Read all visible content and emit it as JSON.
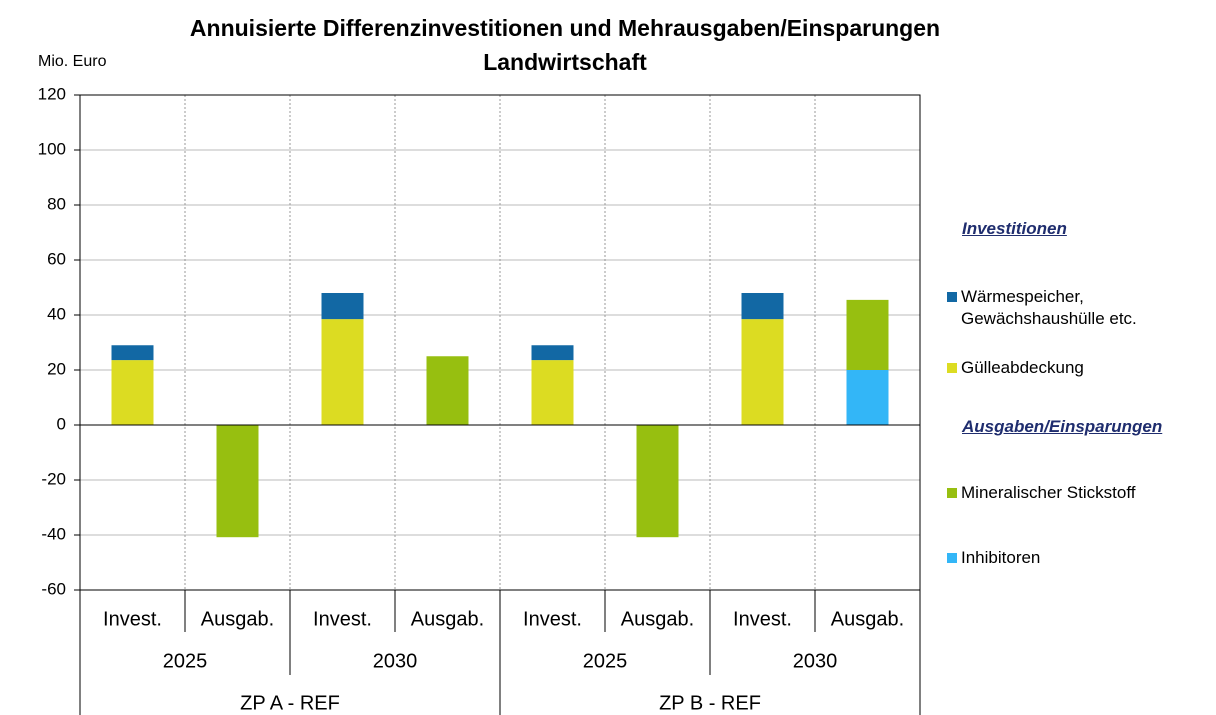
{
  "chart_data": {
    "type": "bar",
    "stacked": true,
    "title": "Annuisierte Differenzinvestitionen und Mehrausgaben/Einsparungen",
    "subtitle": "Landwirtschaft",
    "y_label": "Mio. Euro",
    "categories": [
      "Invest.",
      "Ausgab.",
      "Invest.",
      "Ausgab.",
      "Invest.",
      "Ausgab.",
      "Invest.",
      "Ausgab."
    ],
    "years": [
      "2025",
      "2030",
      "2025",
      "2030"
    ],
    "scenarios": [
      "ZP A - REF",
      "ZP B - REF"
    ],
    "legend_headings": [
      "Investitionen",
      "Ausgaben/Einsparungen"
    ],
    "series": [
      {
        "name": "Gülleabdeckung",
        "color": "#dcdc22",
        "values": [
          23.6,
          null,
          38.5,
          null,
          23.6,
          null,
          38.5,
          null
        ]
      },
      {
        "name": "Wärmespeicher, Gewächshaushülle etc.",
        "color": "#1268a4",
        "values": [
          5.4,
          null,
          9.5,
          null,
          5.4,
          null,
          9.5,
          null
        ]
      },
      {
        "name": "Inhibitoren",
        "color": "#33b6f7",
        "values": [
          null,
          null,
          null,
          null,
          null,
          null,
          null,
          20
        ]
      },
      {
        "name": "Mineralischer Stickstoff",
        "color": "#97bf10",
        "values": [
          null,
          -40.8,
          null,
          25,
          null,
          -40.8,
          null,
          25.5
        ]
      }
    ],
    "ylim": [
      -60,
      120
    ],
    "yticks": [
      -60,
      -40,
      -20,
      0,
      20,
      40,
      60,
      80,
      100,
      120
    ],
    "grid": true
  }
}
